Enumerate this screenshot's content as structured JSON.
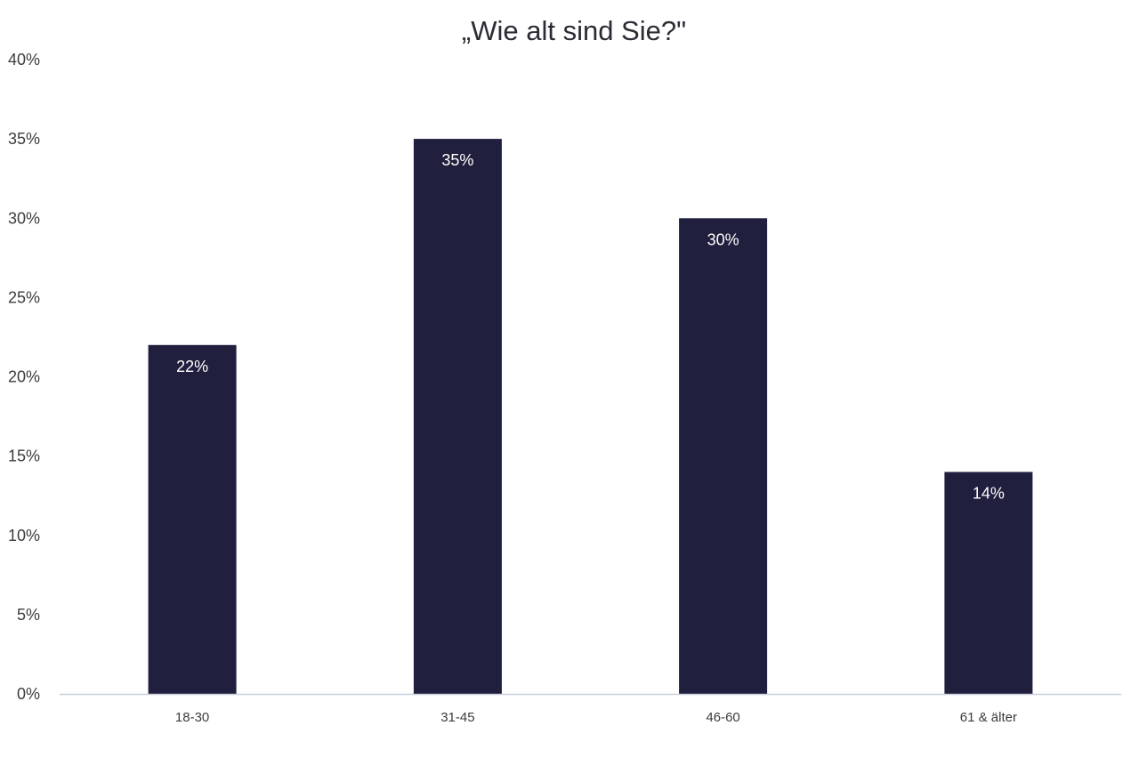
{
  "chart_data": {
    "type": "bar",
    "title": "„Wie alt sind Sie?\"",
    "categories": [
      "18-30",
      "31-45",
      "46-60",
      "61 & älter"
    ],
    "values": [
      22,
      35,
      30,
      14
    ],
    "data_labels": [
      "22%",
      "35%",
      "30%",
      "14%"
    ],
    "ylim": [
      0,
      40
    ],
    "yticks": [
      0,
      5,
      10,
      15,
      20,
      25,
      30,
      35,
      40
    ],
    "ytick_labels": [
      "0%",
      "5%",
      "10%",
      "15%",
      "20%",
      "25%",
      "30%",
      "35%",
      "40%"
    ],
    "xlabel": "",
    "ylabel": "",
    "grid": false,
    "legend": "none",
    "bar_color": "#201f3d",
    "axis_color": "#c8cfdd"
  }
}
